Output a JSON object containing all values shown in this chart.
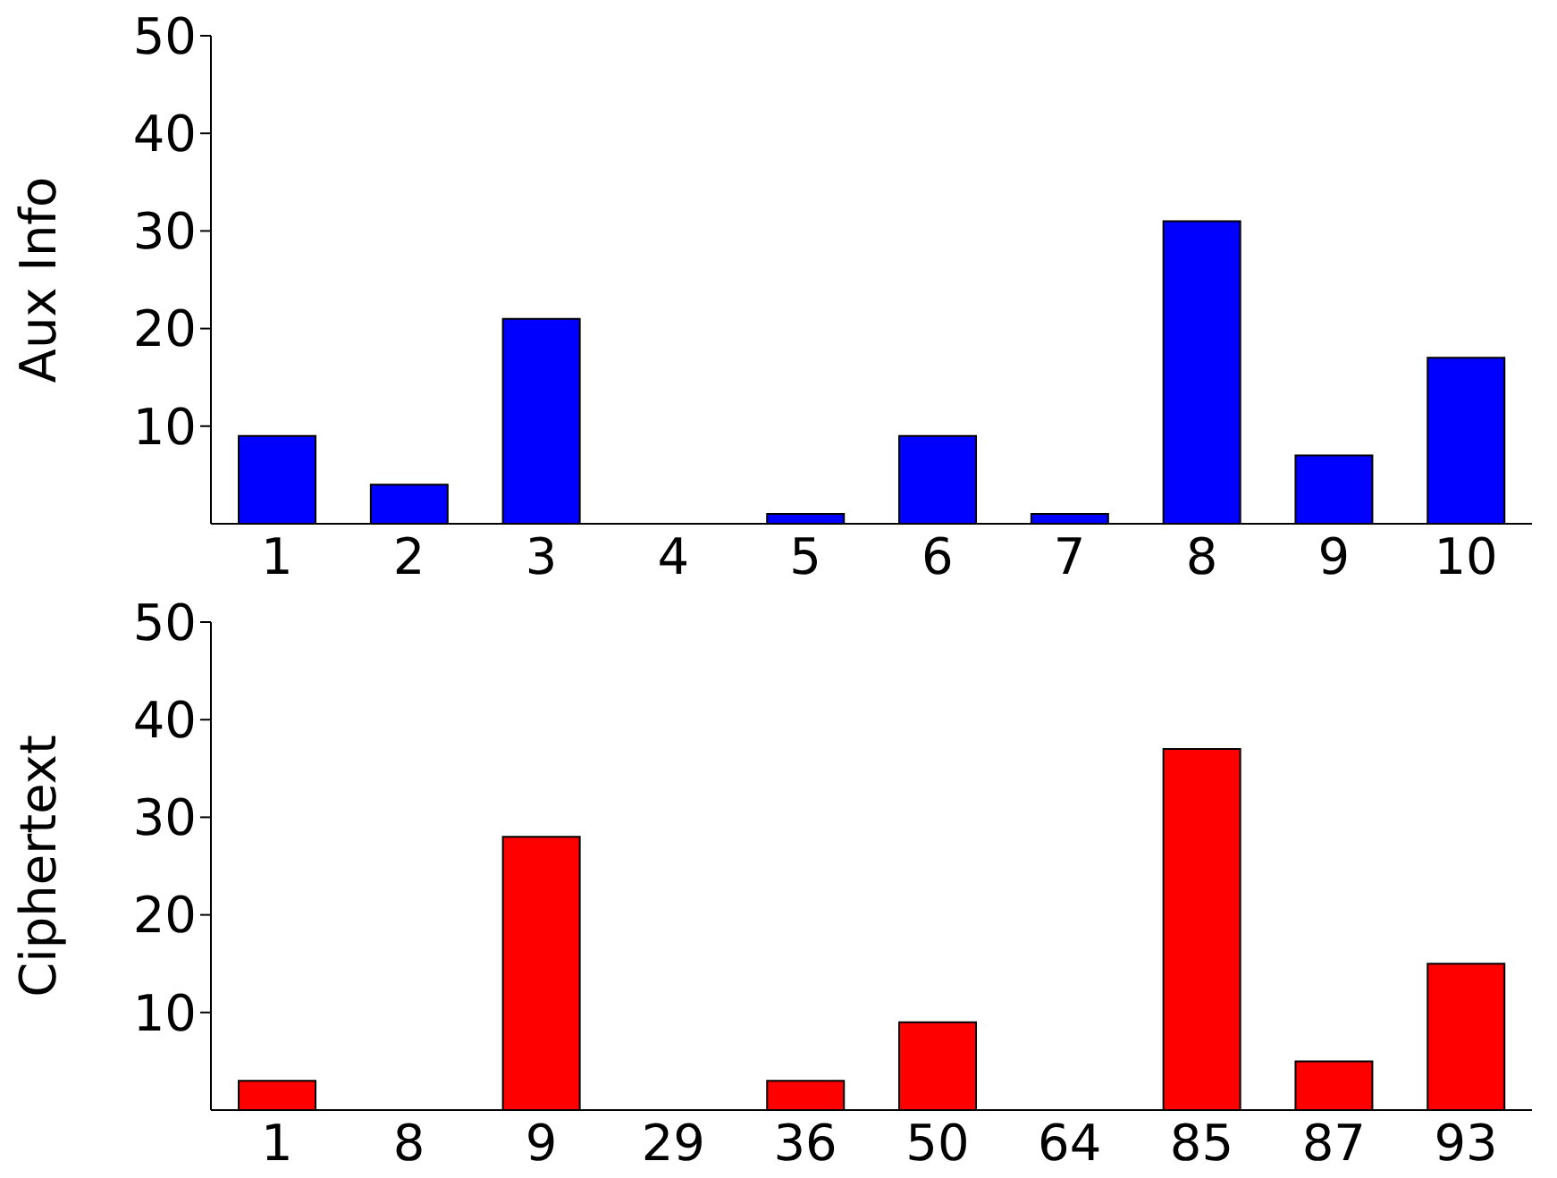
{
  "chart_data": [
    {
      "type": "bar",
      "ylabel": "Aux Info",
      "categories": [
        "1",
        "2",
        "3",
        "4",
        "5",
        "6",
        "7",
        "8",
        "9",
        "10"
      ],
      "values": [
        9,
        4,
        21,
        0,
        1,
        9,
        1,
        31,
        7,
        17
      ],
      "color": "#0000ff",
      "ylim": [
        0,
        50
      ],
      "yticks": [
        10,
        20,
        30,
        40,
        50
      ],
      "grid": false
    },
    {
      "type": "bar",
      "ylabel": "Ciphertext",
      "categories": [
        "1",
        "8",
        "9",
        "29",
        "36",
        "50",
        "64",
        "85",
        "87",
        "93"
      ],
      "values": [
        3,
        0,
        28,
        0,
        3,
        9,
        0,
        37,
        5,
        15
      ],
      "color": "#ff0000",
      "ylim": [
        0,
        50
      ],
      "yticks": [
        10,
        20,
        30,
        40,
        50
      ],
      "grid": false
    }
  ]
}
